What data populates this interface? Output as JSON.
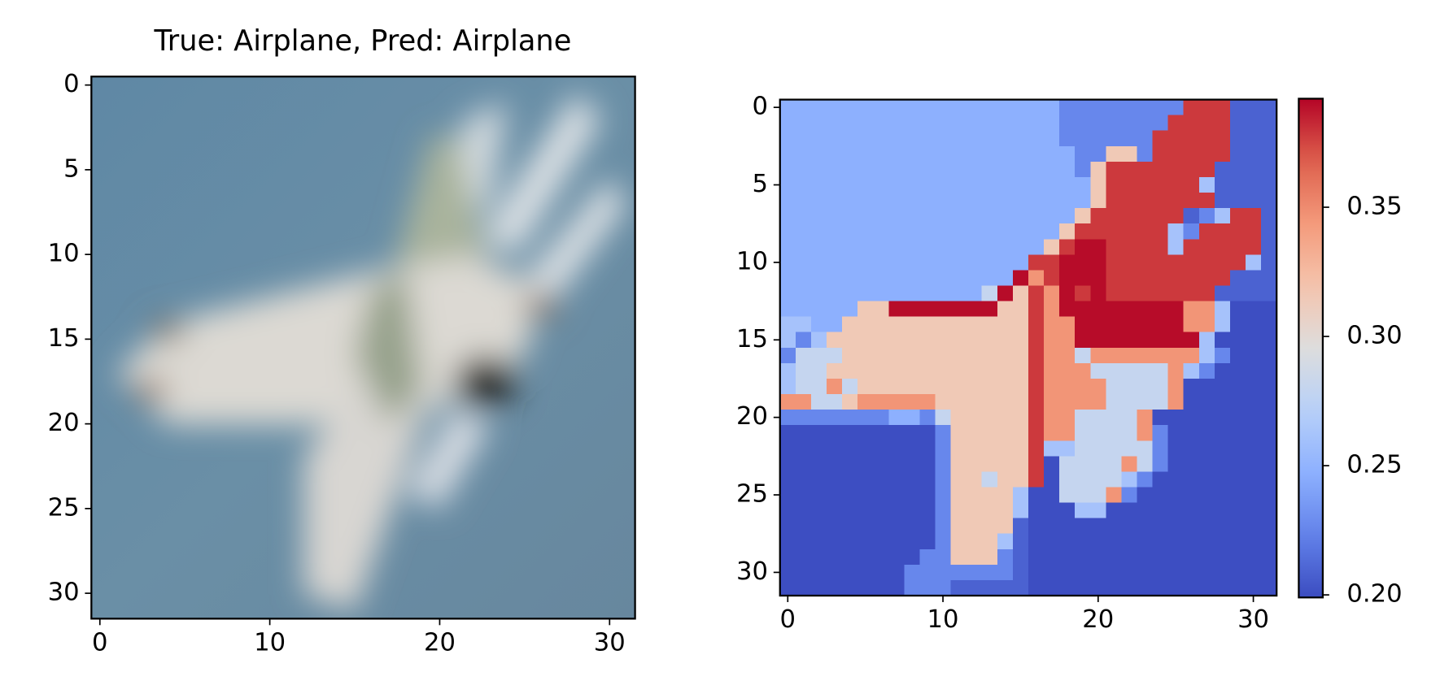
{
  "chart_data": [
    {
      "type": "image",
      "title": "True: Airplane, Pred: Airplane",
      "xlim": [
        -0.5,
        31.5
      ],
      "ylim": [
        31.5,
        -0.5
      ],
      "xticks": [
        0,
        10,
        20,
        30
      ],
      "yticks": [
        0,
        5,
        10,
        15,
        20,
        25,
        30
      ]
    },
    {
      "type": "heatmap",
      "colormap": "coolwarm",
      "xlim": [
        -0.5,
        31.5
      ],
      "ylim": [
        31.5,
        -0.5
      ],
      "xticks": [
        0,
        10,
        20,
        30
      ],
      "yticks": [
        0,
        5,
        10,
        15,
        20,
        25,
        30
      ],
      "clim": [
        0.199,
        0.392
      ],
      "cticks": [
        {
          "value": 0.2,
          "label": "0.20"
        },
        0.25,
        {
          "value": 0.3,
          "label": "0.30"
        },
        0.35
      ],
      "values": [
        [
          0.247,
          0.247,
          0.247,
          0.247,
          0.247,
          0.247,
          0.247,
          0.247,
          0.247,
          0.247,
          0.247,
          0.247,
          0.247,
          0.247,
          0.247,
          0.247,
          0.247,
          0.247,
          0.226,
          0.226,
          0.226,
          0.226,
          0.226,
          0.226,
          0.226,
          0.226,
          0.378,
          0.378,
          0.378,
          0.209,
          0.209,
          0.209
        ],
        [
          0.247,
          0.247,
          0.247,
          0.247,
          0.247,
          0.247,
          0.247,
          0.247,
          0.247,
          0.247,
          0.247,
          0.247,
          0.247,
          0.247,
          0.247,
          0.247,
          0.247,
          0.247,
          0.226,
          0.226,
          0.226,
          0.226,
          0.226,
          0.226,
          0.226,
          0.378,
          0.378,
          0.378,
          0.378,
          0.209,
          0.209,
          0.209
        ],
        [
          0.247,
          0.247,
          0.247,
          0.247,
          0.247,
          0.247,
          0.247,
          0.247,
          0.247,
          0.247,
          0.247,
          0.247,
          0.247,
          0.247,
          0.247,
          0.247,
          0.247,
          0.247,
          0.226,
          0.226,
          0.226,
          0.226,
          0.226,
          0.226,
          0.378,
          0.378,
          0.378,
          0.378,
          0.378,
          0.209,
          0.209,
          0.209
        ],
        [
          0.247,
          0.247,
          0.247,
          0.247,
          0.247,
          0.247,
          0.247,
          0.247,
          0.247,
          0.247,
          0.247,
          0.247,
          0.247,
          0.247,
          0.247,
          0.247,
          0.247,
          0.247,
          0.247,
          0.226,
          0.226,
          0.315,
          0.315,
          0.226,
          0.378,
          0.378,
          0.378,
          0.378,
          0.378,
          0.209,
          0.209,
          0.209
        ],
        [
          0.247,
          0.247,
          0.247,
          0.247,
          0.247,
          0.247,
          0.247,
          0.247,
          0.247,
          0.247,
          0.247,
          0.247,
          0.247,
          0.247,
          0.247,
          0.247,
          0.247,
          0.247,
          0.247,
          0.226,
          0.315,
          0.378,
          0.378,
          0.378,
          0.378,
          0.378,
          0.378,
          0.378,
          0.209,
          0.209,
          0.209,
          0.209
        ],
        [
          0.247,
          0.247,
          0.247,
          0.247,
          0.247,
          0.247,
          0.247,
          0.247,
          0.247,
          0.247,
          0.247,
          0.247,
          0.247,
          0.247,
          0.247,
          0.247,
          0.247,
          0.247,
          0.247,
          0.247,
          0.315,
          0.378,
          0.378,
          0.378,
          0.378,
          0.378,
          0.378,
          0.261,
          0.209,
          0.209,
          0.209,
          0.209
        ],
        [
          0.247,
          0.247,
          0.247,
          0.247,
          0.247,
          0.247,
          0.247,
          0.247,
          0.247,
          0.247,
          0.247,
          0.247,
          0.247,
          0.247,
          0.247,
          0.247,
          0.247,
          0.247,
          0.247,
          0.247,
          0.315,
          0.378,
          0.378,
          0.378,
          0.378,
          0.378,
          0.378,
          0.378,
          0.209,
          0.209,
          0.209,
          0.209
        ],
        [
          0.247,
          0.247,
          0.247,
          0.247,
          0.247,
          0.247,
          0.247,
          0.247,
          0.247,
          0.247,
          0.247,
          0.247,
          0.247,
          0.247,
          0.247,
          0.247,
          0.247,
          0.247,
          0.247,
          0.315,
          0.378,
          0.378,
          0.378,
          0.378,
          0.378,
          0.378,
          0.209,
          0.226,
          0.261,
          0.378,
          0.378,
          0.209
        ],
        [
          0.247,
          0.247,
          0.247,
          0.247,
          0.247,
          0.247,
          0.247,
          0.247,
          0.247,
          0.247,
          0.247,
          0.247,
          0.247,
          0.247,
          0.247,
          0.247,
          0.247,
          0.247,
          0.315,
          0.378,
          0.378,
          0.378,
          0.378,
          0.378,
          0.378,
          0.261,
          0.226,
          0.378,
          0.378,
          0.378,
          0.378,
          0.209
        ],
        [
          0.247,
          0.247,
          0.247,
          0.247,
          0.247,
          0.247,
          0.247,
          0.247,
          0.247,
          0.247,
          0.247,
          0.247,
          0.247,
          0.247,
          0.247,
          0.247,
          0.247,
          0.315,
          0.378,
          0.39,
          0.39,
          0.378,
          0.378,
          0.378,
          0.378,
          0.261,
          0.378,
          0.378,
          0.378,
          0.378,
          0.378,
          0.209
        ],
        [
          0.247,
          0.247,
          0.247,
          0.247,
          0.247,
          0.247,
          0.247,
          0.247,
          0.247,
          0.247,
          0.247,
          0.247,
          0.247,
          0.247,
          0.247,
          0.247,
          0.378,
          0.378,
          0.39,
          0.39,
          0.39,
          0.378,
          0.378,
          0.378,
          0.378,
          0.378,
          0.378,
          0.378,
          0.378,
          0.378,
          0.261,
          0.209
        ],
        [
          0.247,
          0.247,
          0.247,
          0.247,
          0.247,
          0.247,
          0.247,
          0.247,
          0.247,
          0.247,
          0.247,
          0.247,
          0.247,
          0.247,
          0.247,
          0.39,
          0.346,
          0.378,
          0.39,
          0.39,
          0.39,
          0.378,
          0.378,
          0.378,
          0.378,
          0.378,
          0.378,
          0.378,
          0.378,
          0.209,
          0.209,
          0.209
        ],
        [
          0.247,
          0.247,
          0.247,
          0.247,
          0.247,
          0.247,
          0.247,
          0.247,
          0.247,
          0.247,
          0.247,
          0.247,
          0.247,
          0.28,
          0.39,
          0.315,
          0.378,
          0.346,
          0.39,
          0.378,
          0.39,
          0.378,
          0.378,
          0.378,
          0.378,
          0.378,
          0.378,
          0.378,
          0.209,
          0.209,
          0.209,
          0.209
        ],
        [
          0.247,
          0.247,
          0.247,
          0.247,
          0.247,
          0.315,
          0.315,
          0.39,
          0.39,
          0.39,
          0.39,
          0.39,
          0.39,
          0.39,
          0.315,
          0.315,
          0.378,
          0.346,
          0.39,
          0.39,
          0.39,
          0.39,
          0.39,
          0.39,
          0.39,
          0.39,
          0.346,
          0.346,
          0.261,
          0.2,
          0.2,
          0.2
        ],
        [
          0.261,
          0.261,
          0.247,
          0.247,
          0.315,
          0.315,
          0.315,
          0.315,
          0.315,
          0.315,
          0.315,
          0.315,
          0.315,
          0.315,
          0.315,
          0.315,
          0.378,
          0.346,
          0.346,
          0.39,
          0.39,
          0.39,
          0.39,
          0.39,
          0.39,
          0.39,
          0.346,
          0.346,
          0.261,
          0.2,
          0.2,
          0.2
        ],
        [
          0.261,
          0.226,
          0.261,
          0.315,
          0.315,
          0.315,
          0.315,
          0.315,
          0.315,
          0.315,
          0.315,
          0.315,
          0.315,
          0.315,
          0.315,
          0.315,
          0.378,
          0.346,
          0.346,
          0.39,
          0.39,
          0.39,
          0.39,
          0.39,
          0.39,
          0.39,
          0.39,
          0.261,
          0.2,
          0.2,
          0.2,
          0.2
        ],
        [
          0.226,
          0.28,
          0.28,
          0.28,
          0.315,
          0.315,
          0.315,
          0.315,
          0.315,
          0.315,
          0.315,
          0.315,
          0.315,
          0.315,
          0.315,
          0.315,
          0.378,
          0.346,
          0.346,
          0.28,
          0.346,
          0.346,
          0.346,
          0.346,
          0.346,
          0.346,
          0.346,
          0.261,
          0.226,
          0.2,
          0.2,
          0.2
        ],
        [
          0.261,
          0.28,
          0.28,
          0.315,
          0.315,
          0.315,
          0.315,
          0.315,
          0.315,
          0.315,
          0.315,
          0.315,
          0.315,
          0.315,
          0.315,
          0.315,
          0.378,
          0.346,
          0.346,
          0.346,
          0.28,
          0.28,
          0.28,
          0.28,
          0.28,
          0.346,
          0.261,
          0.226,
          0.2,
          0.2,
          0.2,
          0.2
        ],
        [
          0.261,
          0.28,
          0.28,
          0.346,
          0.28,
          0.315,
          0.315,
          0.315,
          0.315,
          0.315,
          0.315,
          0.315,
          0.315,
          0.315,
          0.315,
          0.315,
          0.378,
          0.346,
          0.346,
          0.346,
          0.346,
          0.28,
          0.28,
          0.28,
          0.28,
          0.346,
          0.2,
          0.2,
          0.2,
          0.2,
          0.2,
          0.2
        ],
        [
          0.346,
          0.346,
          0.28,
          0.28,
          0.315,
          0.346,
          0.346,
          0.346,
          0.346,
          0.346,
          0.315,
          0.315,
          0.315,
          0.315,
          0.315,
          0.315,
          0.378,
          0.346,
          0.346,
          0.346,
          0.346,
          0.28,
          0.28,
          0.28,
          0.28,
          0.346,
          0.2,
          0.2,
          0.2,
          0.2,
          0.2,
          0.2
        ],
        [
          0.226,
          0.226,
          0.226,
          0.226,
          0.226,
          0.226,
          0.226,
          0.247,
          0.247,
          0.226,
          0.28,
          0.315,
          0.315,
          0.315,
          0.315,
          0.315,
          0.378,
          0.346,
          0.346,
          0.28,
          0.28,
          0.28,
          0.28,
          0.346,
          0.2,
          0.2,
          0.2,
          0.2,
          0.2,
          0.2,
          0.2,
          0.2
        ],
        [
          0.2,
          0.2,
          0.2,
          0.2,
          0.2,
          0.2,
          0.2,
          0.2,
          0.2,
          0.2,
          0.226,
          0.315,
          0.315,
          0.315,
          0.315,
          0.315,
          0.378,
          0.346,
          0.346,
          0.28,
          0.28,
          0.28,
          0.28,
          0.346,
          0.226,
          0.2,
          0.2,
          0.2,
          0.2,
          0.2,
          0.2,
          0.2
        ],
        [
          0.2,
          0.2,
          0.2,
          0.2,
          0.2,
          0.2,
          0.2,
          0.2,
          0.2,
          0.2,
          0.226,
          0.315,
          0.315,
          0.315,
          0.315,
          0.315,
          0.378,
          0.261,
          0.261,
          0.28,
          0.28,
          0.28,
          0.28,
          0.28,
          0.226,
          0.2,
          0.2,
          0.2,
          0.2,
          0.2,
          0.2,
          0.2
        ],
        [
          0.2,
          0.2,
          0.2,
          0.2,
          0.2,
          0.2,
          0.2,
          0.2,
          0.2,
          0.2,
          0.226,
          0.315,
          0.315,
          0.315,
          0.315,
          0.315,
          0.378,
          0.2,
          0.28,
          0.28,
          0.28,
          0.28,
          0.346,
          0.28,
          0.226,
          0.2,
          0.2,
          0.2,
          0.2,
          0.2,
          0.2,
          0.2
        ],
        [
          0.2,
          0.2,
          0.2,
          0.2,
          0.2,
          0.2,
          0.2,
          0.2,
          0.2,
          0.2,
          0.226,
          0.315,
          0.315,
          0.28,
          0.315,
          0.315,
          0.378,
          0.2,
          0.28,
          0.28,
          0.28,
          0.28,
          0.261,
          0.226,
          0.2,
          0.2,
          0.2,
          0.2,
          0.2,
          0.2,
          0.2,
          0.2
        ],
        [
          0.2,
          0.2,
          0.2,
          0.2,
          0.2,
          0.2,
          0.2,
          0.2,
          0.2,
          0.2,
          0.226,
          0.315,
          0.315,
          0.315,
          0.315,
          0.261,
          0.2,
          0.2,
          0.28,
          0.28,
          0.28,
          0.346,
          0.226,
          0.2,
          0.2,
          0.2,
          0.2,
          0.2,
          0.2,
          0.2,
          0.2,
          0.2
        ],
        [
          0.2,
          0.2,
          0.2,
          0.2,
          0.2,
          0.2,
          0.2,
          0.2,
          0.2,
          0.2,
          0.226,
          0.315,
          0.315,
          0.315,
          0.315,
          0.261,
          0.2,
          0.2,
          0.2,
          0.261,
          0.261,
          0.2,
          0.2,
          0.2,
          0.2,
          0.2,
          0.2,
          0.2,
          0.2,
          0.2,
          0.2,
          0.2
        ],
        [
          0.2,
          0.2,
          0.2,
          0.2,
          0.2,
          0.2,
          0.2,
          0.2,
          0.2,
          0.2,
          0.226,
          0.315,
          0.315,
          0.315,
          0.315,
          0.209,
          0.2,
          0.2,
          0.2,
          0.2,
          0.2,
          0.2,
          0.2,
          0.2,
          0.2,
          0.2,
          0.2,
          0.2,
          0.2,
          0.2,
          0.2,
          0.2
        ],
        [
          0.2,
          0.2,
          0.2,
          0.2,
          0.2,
          0.2,
          0.2,
          0.2,
          0.2,
          0.2,
          0.226,
          0.315,
          0.315,
          0.315,
          0.261,
          0.209,
          0.2,
          0.2,
          0.2,
          0.2,
          0.2,
          0.2,
          0.2,
          0.2,
          0.2,
          0.2,
          0.2,
          0.2,
          0.2,
          0.2,
          0.2,
          0.2
        ],
        [
          0.2,
          0.2,
          0.2,
          0.2,
          0.2,
          0.2,
          0.2,
          0.2,
          0.2,
          0.226,
          0.226,
          0.315,
          0.315,
          0.315,
          0.226,
          0.209,
          0.2,
          0.2,
          0.2,
          0.2,
          0.2,
          0.2,
          0.2,
          0.2,
          0.2,
          0.2,
          0.2,
          0.2,
          0.2,
          0.2,
          0.2,
          0.2
        ],
        [
          0.2,
          0.2,
          0.2,
          0.2,
          0.2,
          0.2,
          0.2,
          0.2,
          0.226,
          0.226,
          0.226,
          0.226,
          0.226,
          0.226,
          0.226,
          0.209,
          0.2,
          0.2,
          0.2,
          0.2,
          0.2,
          0.2,
          0.2,
          0.2,
          0.2,
          0.2,
          0.2,
          0.2,
          0.2,
          0.2,
          0.2,
          0.2
        ],
        [
          0.2,
          0.2,
          0.2,
          0.2,
          0.2,
          0.2,
          0.2,
          0.2,
          0.226,
          0.226,
          0.226,
          0.209,
          0.209,
          0.209,
          0.209,
          0.209,
          0.2,
          0.2,
          0.2,
          0.2,
          0.2,
          0.2,
          0.2,
          0.2,
          0.2,
          0.2,
          0.2,
          0.2,
          0.2,
          0.2,
          0.2,
          0.2
        ]
      ]
    }
  ]
}
